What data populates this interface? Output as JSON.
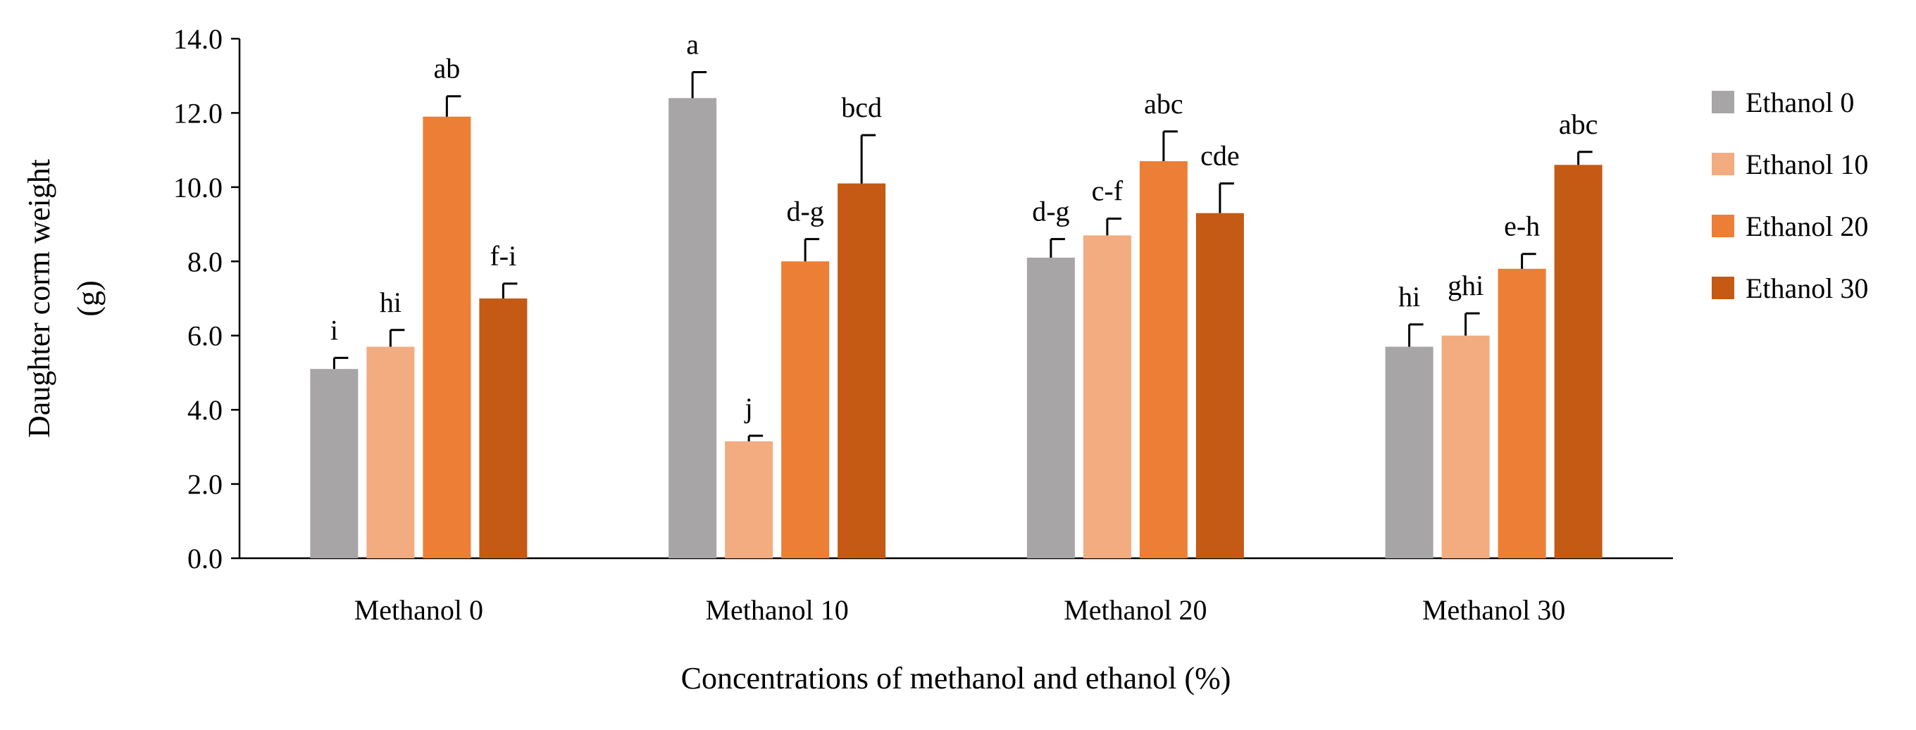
{
  "chart_data": {
    "type": "bar",
    "title": "",
    "xlabel": "Concentrations of methanol and ethanol (%)",
    "ylabel_lines": [
      "Daughter corm weight",
      "(g)"
    ],
    "ylim": [
      0,
      14
    ],
    "ytick_step": 2,
    "ytick_labels": [
      "0.0",
      "2.0",
      "4.0",
      "6.0",
      "8.0",
      "10.0",
      "12.0",
      "14.0"
    ],
    "grid": false,
    "legend_position": "right",
    "categories": [
      "Methanol 0",
      "Methanol 10",
      "Methanol 20",
      "Methanol 30"
    ],
    "series": [
      {
        "name": "Ethanol 0",
        "color": "#a7a5a5",
        "values": [
          5.1,
          12.4,
          8.1,
          5.7
        ],
        "errors": [
          0.3,
          0.7,
          0.5,
          0.6
        ],
        "labels": [
          "i",
          "a",
          "d-g",
          "hi"
        ]
      },
      {
        "name": "Ethanol 10",
        "color": "#f2ac80",
        "values": [
          5.7,
          3.15,
          8.7,
          6.0
        ],
        "errors": [
          0.45,
          0.15,
          0.45,
          0.6
        ],
        "labels": [
          "hi",
          "j",
          "c-f",
          "ghi"
        ]
      },
      {
        "name": "Ethanol 20",
        "color": "#ec7f35",
        "values": [
          11.9,
          8.0,
          10.7,
          7.8
        ],
        "errors": [
          0.55,
          0.6,
          0.8,
          0.4
        ],
        "labels": [
          "ab",
          "d-g",
          "abc",
          "e-h"
        ]
      },
      {
        "name": "Ethanol 30",
        "color": "#c45a14",
        "values": [
          7.0,
          10.1,
          9.3,
          10.6
        ],
        "errors": [
          0.4,
          1.3,
          0.8,
          0.35
        ],
        "labels": [
          "f-i",
          "bcd",
          "cde",
          "abc"
        ]
      }
    ]
  }
}
